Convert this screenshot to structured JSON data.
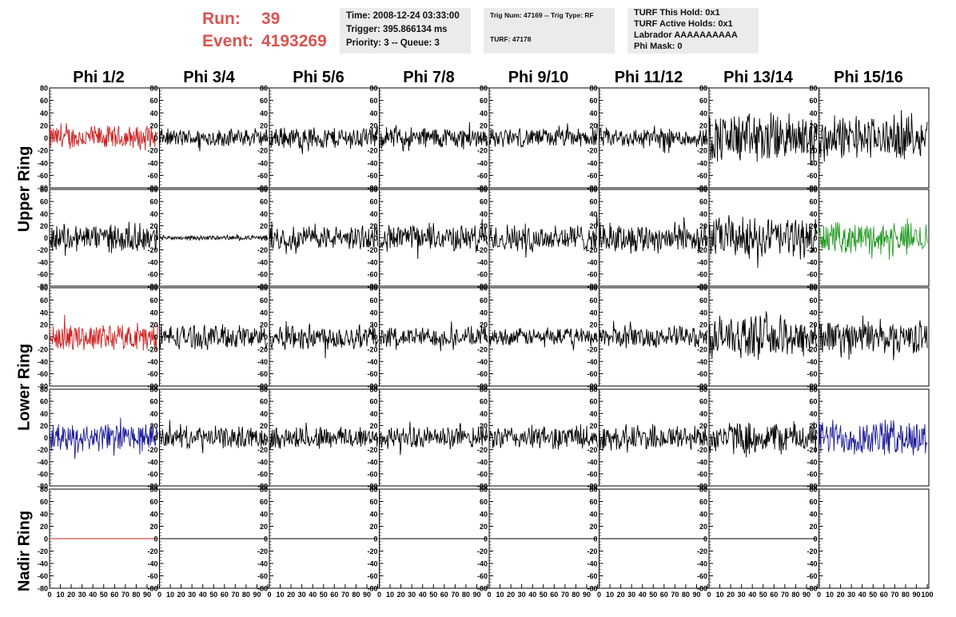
{
  "header": {
    "run_label": "Run:",
    "run_value": "39",
    "event_label": "Event:",
    "event_value": "4193269",
    "time": "Time: 2008-12-24 03:33:00",
    "trigger": "Trigger: 395.866134 ms",
    "priority": "Priority: 3 -- Queue: 3",
    "trig_num": "Trig Num: 47169 -- Trig Type: RF",
    "turf": "TURF: 47178",
    "turf_this_hold": "TURF This Hold: 0x1",
    "turf_active_holds": "TURF Active Holds: 0x1",
    "labrador": "Labrador AAAAAAAAAA",
    "phi_mask": "Phi Mask: 0"
  },
  "phi_headers": [
    "Phi 1/2",
    "Phi 3/4",
    "Phi 5/6",
    "Phi 7/8",
    "Phi 9/10",
    "Phi 11/12",
    "Phi 13/14",
    "Phi 15/16"
  ],
  "ring_labels": [
    "Upper Ring",
    "Lower Ring",
    "Nadir Ring"
  ],
  "colors": {
    "red": "#cc2222",
    "green": "#229922",
    "blue": "#1a1a99",
    "black": "#000000"
  },
  "chart_data": {
    "type": "line",
    "grid": "off",
    "x_range": [
      0,
      100
    ],
    "y_range": [
      -80,
      80
    ],
    "y_ticks": [
      "80",
      "60",
      "40",
      "20",
      "0",
      "-20",
      "-40",
      "-60",
      "-80"
    ],
    "x_ticks": [
      "0",
      "10",
      "20",
      "30",
      "40",
      "50",
      "60",
      "70",
      "80",
      "90",
      "100"
    ],
    "rows": 5,
    "cols": 8,
    "trace_amplitude": [
      [
        22,
        16,
        20,
        20,
        17,
        18,
        45,
        38
      ],
      [
        26,
        4,
        22,
        24,
        26,
        28,
        38,
        28
      ],
      [
        24,
        22,
        24,
        18,
        16,
        20,
        38,
        30
      ],
      [
        26,
        20,
        22,
        20,
        22,
        24,
        30,
        34
      ],
      [
        0,
        0,
        0,
        0,
        0,
        0,
        0,
        0
      ]
    ],
    "trace_color": [
      [
        "red",
        "black",
        "black",
        "black",
        "black",
        "black",
        "black",
        "black"
      ],
      [
        "black",
        "black",
        "black",
        "black",
        "black",
        "black",
        "black",
        "green"
      ],
      [
        "red",
        "black",
        "black",
        "black",
        "black",
        "black",
        "black",
        "black"
      ],
      [
        "blue",
        "black",
        "black",
        "black",
        "black",
        "black",
        "black",
        "blue"
      ],
      [
        "red",
        "black",
        "black",
        "black",
        "black",
        "black",
        "black",
        "none"
      ]
    ]
  }
}
